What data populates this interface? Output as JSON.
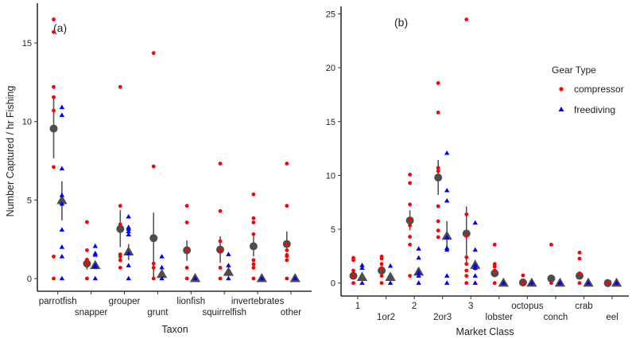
{
  "colors": {
    "compressor": "#ff0000",
    "freediving": "#0000ff",
    "mean": "#4d4d4d"
  },
  "legend": {
    "title": "Gear Type",
    "items": [
      "compressor",
      "freediving"
    ]
  },
  "chart_data": [
    {
      "type": "scatter",
      "panel_label": "(a)",
      "xlabel": "Taxon",
      "ylabel": "Number Captured / hr Fishing",
      "ylim": [
        -1.3,
        17.2
      ],
      "yticks": [
        0,
        5,
        10,
        15
      ],
      "categories": [
        "parrotfish",
        "snapper",
        "grouper",
        "grunt",
        "lionfish",
        "squirrelfish",
        "invertebrates",
        "other"
      ],
      "series": [
        {
          "name": "compressor",
          "points": [
            [
              16.5,
              15.7,
              12.2,
              11.55,
              10.7,
              7.1,
              1.4,
              0
            ],
            [
              3.6,
              1.8,
              1.2,
              0.95,
              0
            ],
            [
              12.2,
              4.63,
              3.45,
              1.54,
              1.4,
              1.17,
              0.69
            ],
            [
              14.36,
              7.14,
              0.95,
              0.69,
              0
            ],
            [
              4.63,
              3.57,
              1.84,
              0.69,
              0
            ],
            [
              7.32,
              4.3,
              2.38,
              1.8,
              0.69,
              0
            ],
            [
              5.36,
              3.84,
              3.57,
              2.82,
              1.17,
              0.91,
              0.69,
              0
            ],
            [
              7.32,
              4.63,
              2.2,
              1.8,
              1.5,
              1.42,
              1.17,
              0
            ]
          ],
          "mean": [
            9.55,
            0.95,
            3.16,
            2.57,
            1.8,
            1.84,
            2.05,
            2.2
          ],
          "err_low": [
            7.66,
            0.57,
            2.0,
            0.0,
            1.13,
            1.0,
            1.42,
            1.67
          ],
          "err_high": [
            11.5,
            1.25,
            4.35,
            4.2,
            2.43,
            2.69,
            2.69,
            3.0
          ]
        },
        {
          "name": "freediving",
          "points": [
            [
              10.9,
              10.4,
              7.0,
              5.3,
              4.75,
              3.1,
              2.0,
              1.4,
              0
            ],
            [
              2.06,
              1.6,
              1.5,
              0.83,
              0.75,
              0
            ],
            [
              3.94,
              3.26,
              3.16,
              3.0,
              2.8,
              1.6,
              0.83,
              0
            ],
            [
              1.4,
              0.7,
              0
            ],
            [
              0
            ],
            [
              1.54,
              0.83,
              0
            ],
            [
              0
            ],
            [
              0
            ]
          ],
          "mean": [
            4.97,
            0.83,
            1.7,
            0.27,
            0,
            0.4,
            0,
            0
          ],
          "err_low": [
            3.7,
            0.66,
            1.17,
            0.1,
            0,
            0.15,
            0,
            0
          ],
          "err_high": [
            6.2,
            1.08,
            2.2,
            0.45,
            0,
            0.65,
            0,
            0
          ]
        }
      ]
    },
    {
      "type": "scatter",
      "panel_label": "(b)",
      "xlabel": "Market Class",
      "ylabel": "",
      "ylim": [
        -1.2,
        25.6
      ],
      "yticks": [
        0,
        5,
        10,
        15,
        20,
        25
      ],
      "categories": [
        "1",
        "1or2",
        "2",
        "2or3",
        "3",
        "lobster",
        "octopus",
        "conch",
        "crab",
        "eel"
      ],
      "series": [
        {
          "name": "compressor",
          "points": [
            [
              2.34,
              2.14,
              1.16,
              0.67,
              0
            ],
            [
              2.46,
              2.27,
              1.77,
              1.4,
              0.67,
              0
            ],
            [
              10.07,
              9.29,
              7.3,
              5.9,
              5.35,
              4.3,
              3.57,
              0.67
            ],
            [
              18.57,
              15.84,
              10.7,
              10.4,
              7.14,
              5.74,
              4.88,
              4.26
            ],
            [
              24.48,
              6.38,
              4.36,
              2.39,
              1.77,
              1.16,
              0.67,
              0
            ],
            [
              3.57,
              1.77,
              1.53,
              1.16,
              0
            ],
            [
              0.71,
              0
            ],
            [
              3.57,
              0
            ],
            [
              2.83,
              2.27,
              0.91,
              0
            ],
            [
              0
            ]
          ],
          "mean": [
            0.67,
            1.16,
            5.81,
            9.8,
            4.6,
            0.91,
            0.05,
            0.42,
            0.67,
            0
          ],
          "err_low": [
            0.42,
            0.8,
            4.9,
            8.18,
            1.65,
            0.7,
            0,
            0.3,
            0.42,
            0
          ],
          "err_high": [
            0.92,
            1.52,
            6.75,
            11.43,
            7.12,
            1.15,
            0.1,
            0.6,
            0.92,
            0
          ]
        },
        {
          "name": "freediving",
          "points": [
            [
              1.65,
              1.4,
              0
            ],
            [
              1.58,
              0
            ],
            [
              3.18,
              2.34,
              0.96,
              0.67,
              0
            ],
            [
              12.07,
              8.6,
              7.64,
              4.24,
              3.25,
              3.08,
              0.67,
              0
            ],
            [
              5.59,
              3.08,
              1.65,
              1.4,
              0.67,
              0
            ],
            [
              0
            ],
            [
              0
            ],
            [
              0
            ],
            [
              0
            ],
            [
              0
            ]
          ],
          "mean": [
            0.54,
            0.54,
            1.03,
            4.36,
            1.65,
            0,
            0,
            0,
            0,
            0
          ],
          "err_low": [
            0.3,
            0.3,
            0.67,
            3.25,
            1.16,
            0,
            0,
            0,
            0,
            0
          ],
          "err_high": [
            0.8,
            0.8,
            1.4,
            5.76,
            2.14,
            0,
            0,
            0,
            0,
            0
          ]
        }
      ]
    }
  ]
}
